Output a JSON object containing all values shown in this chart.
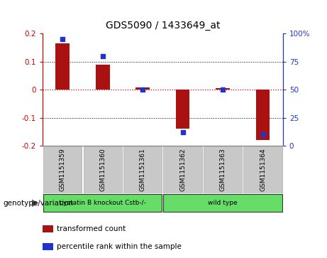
{
  "title": "GDS5090 / 1433649_at",
  "samples": [
    "GSM1151359",
    "GSM1151360",
    "GSM1151361",
    "GSM1151362",
    "GSM1151363",
    "GSM1151364"
  ],
  "bar_values": [
    0.165,
    0.09,
    0.008,
    -0.14,
    0.005,
    -0.18
  ],
  "percentile_values": [
    95,
    80,
    50,
    12,
    50,
    10
  ],
  "ylim_left": [
    -0.2,
    0.2
  ],
  "ylim_right": [
    0,
    100
  ],
  "yticks_left": [
    -0.2,
    -0.1,
    0,
    0.1,
    0.2
  ],
  "yticks_right": [
    0,
    25,
    50,
    75,
    100
  ],
  "bar_color": "#aa1111",
  "dot_color": "#2233cc",
  "zero_line_color": "#cc0000",
  "group_label_left": "cystatin B knockout Cstb-/-",
  "group_label_right": "wild type",
  "group_row_label": "genotype/variation",
  "legend_items": [
    {
      "color": "#aa1111",
      "label": "transformed count"
    },
    {
      "color": "#2233cc",
      "label": "percentile rank within the sample"
    }
  ],
  "sample_box_color": "#c8c8c8",
  "bar_width": 0.35
}
